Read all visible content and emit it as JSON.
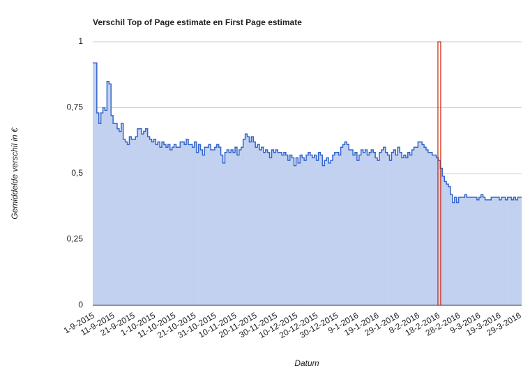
{
  "chart_data": {
    "type": "step-area",
    "title": "Verschil Top of Page estimate en First Page estimate",
    "x_label": "Datum",
    "y_label": "Gemiddelde verschil in €",
    "categories": [
      "1-9-2015",
      null,
      null,
      null,
      null,
      null,
      null,
      null,
      null,
      null,
      "11-9-2015",
      null,
      null,
      null,
      null,
      null,
      null,
      null,
      null,
      null,
      "21-9-2015",
      null,
      null,
      null,
      null,
      null,
      null,
      null,
      null,
      null,
      "1-10-2015",
      null,
      null,
      null,
      null,
      null,
      null,
      null,
      null,
      null,
      "11-10-2015",
      null,
      null,
      null,
      null,
      null,
      null,
      null,
      null,
      null,
      "21-10-2015",
      null,
      null,
      null,
      null,
      null,
      null,
      null,
      null,
      null,
      "31-10-2015",
      null,
      null,
      null,
      null,
      null,
      null,
      null,
      null,
      null,
      "10-11-2015",
      null,
      null,
      null,
      null,
      null,
      null,
      null,
      null,
      null,
      "20-11-2015",
      null,
      null,
      null,
      null,
      null,
      null,
      null,
      null,
      null,
      "30-11-2015",
      null,
      null,
      null,
      null,
      null,
      null,
      null,
      null,
      null,
      "10-12-2015",
      null,
      null,
      null,
      null,
      null,
      null,
      null,
      null,
      null,
      "20-12-2015",
      null,
      null,
      null,
      null,
      null,
      null,
      null,
      null,
      null,
      "30-12-2015",
      null,
      null,
      null,
      null,
      null,
      null,
      null,
      null,
      null,
      "9-1-2016",
      null,
      null,
      null,
      null,
      null,
      null,
      null,
      null,
      null,
      "19-1-2016",
      null,
      null,
      null,
      null,
      null,
      null,
      null,
      null,
      null,
      "29-1-2016",
      null,
      null,
      null,
      null,
      null,
      null,
      null,
      null,
      null,
      "8-2-2016",
      null,
      null,
      null,
      null,
      null,
      null,
      null,
      null,
      null,
      "18-2-2016",
      null,
      null,
      null,
      null,
      null,
      null,
      null,
      null,
      null,
      "28-2-2016",
      null,
      null,
      null,
      null,
      null,
      null,
      null,
      null,
      null,
      "9-3-2016",
      null,
      null,
      null,
      null,
      null,
      null,
      null,
      null,
      null,
      "19-3-2016",
      null,
      null,
      null,
      null,
      null,
      null,
      null,
      null,
      null,
      "29-3-2016"
    ],
    "values": [
      0.92,
      0.92,
      0.73,
      0.69,
      0.73,
      0.75,
      0.74,
      0.85,
      0.84,
      0.72,
      0.69,
      0.69,
      0.67,
      0.66,
      0.69,
      0.63,
      0.62,
      0.61,
      0.64,
      0.63,
      0.63,
      0.64,
      0.67,
      0.67,
      0.65,
      0.66,
      0.67,
      0.64,
      0.63,
      0.62,
      0.63,
      0.61,
      0.62,
      0.6,
      0.62,
      0.61,
      0.6,
      0.61,
      0.59,
      0.6,
      0.61,
      0.6,
      0.6,
      0.62,
      0.62,
      0.61,
      0.63,
      0.61,
      0.61,
      0.6,
      0.62,
      0.58,
      0.61,
      0.59,
      0.57,
      0.6,
      0.6,
      0.61,
      0.59,
      0.59,
      0.6,
      0.61,
      0.6,
      0.57,
      0.54,
      0.58,
      0.59,
      0.58,
      0.59,
      0.58,
      0.6,
      0.57,
      0.59,
      0.6,
      0.63,
      0.65,
      0.64,
      0.62,
      0.64,
      0.62,
      0.6,
      0.61,
      0.59,
      0.6,
      0.58,
      0.59,
      0.58,
      0.56,
      0.59,
      0.58,
      0.59,
      0.58,
      0.58,
      0.57,
      0.58,
      0.57,
      0.55,
      0.57,
      0.56,
      0.53,
      0.56,
      0.54,
      0.57,
      0.56,
      0.55,
      0.57,
      0.58,
      0.57,
      0.56,
      0.57,
      0.55,
      0.58,
      0.57,
      0.53,
      0.55,
      0.56,
      0.54,
      0.55,
      0.57,
      0.58,
      0.58,
      0.57,
      0.6,
      0.61,
      0.62,
      0.61,
      0.59,
      0.59,
      0.57,
      0.58,
      0.55,
      0.57,
      0.59,
      0.58,
      0.59,
      0.57,
      0.58,
      0.59,
      0.58,
      0.56,
      0.55,
      0.58,
      0.59,
      0.6,
      0.58,
      0.57,
      0.55,
      0.58,
      0.59,
      0.57,
      0.6,
      0.58,
      0.56,
      0.57,
      0.56,
      0.58,
      0.57,
      0.59,
      0.6,
      0.6,
      0.62,
      0.62,
      0.61,
      0.6,
      0.59,
      0.58,
      0.58,
      0.57,
      0.57,
      0.56,
      0.55,
      0.52,
      0.49,
      0.47,
      0.46,
      0.45,
      0.42,
      0.39,
      0.41,
      0.39,
      0.41,
      0.41,
      0.41,
      0.42,
      0.41,
      0.41,
      0.41,
      0.41,
      0.41,
      0.4,
      0.41,
      0.42,
      0.41,
      0.4,
      0.4,
      0.4,
      0.41,
      0.41,
      0.41,
      0.41,
      0.4,
      0.41,
      0.41,
      0.4,
      0.41,
      0.41,
      0.4,
      0.41,
      0.4,
      0.41,
      0.41
    ],
    "color": "#3366cc",
    "fill": "#c2d1f0",
    "ylim": [
      0,
      1
    ],
    "yticks": [
      {
        "value": 0,
        "label": "0"
      },
      {
        "value": 0.25,
        "label": "0,25"
      },
      {
        "value": 0.5,
        "label": "0,5"
      },
      {
        "value": 0.75,
        "label": "0,75"
      },
      {
        "value": 1,
        "label": "1"
      }
    ],
    "grid": true,
    "vline": {
      "at": 170,
      "color": "#cc2200"
    }
  }
}
